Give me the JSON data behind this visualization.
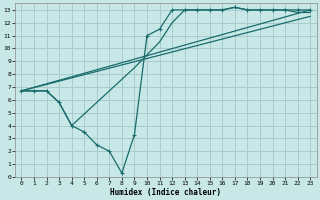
{
  "xlabel": "Humidex (Indice chaleur)",
  "bg_color": "#c8e8e8",
  "grid_color": "#a8cccc",
  "line_color": "#1a6b6b",
  "xlim": [
    -0.5,
    23.5
  ],
  "ylim": [
    0,
    13.5
  ],
  "xticks": [
    0,
    1,
    2,
    3,
    4,
    5,
    6,
    7,
    8,
    9,
    10,
    11,
    12,
    13,
    14,
    15,
    16,
    17,
    18,
    19,
    20,
    21,
    22,
    23
  ],
  "yticks": [
    0,
    1,
    2,
    3,
    4,
    5,
    6,
    7,
    8,
    9,
    10,
    11,
    12,
    13
  ],
  "series": [
    {
      "x": [
        0,
        1,
        2,
        3,
        4,
        5,
        6,
        7,
        8,
        9,
        10,
        11,
        12,
        13,
        14,
        15,
        16,
        17,
        18,
        19,
        20,
        21,
        22,
        23
      ],
      "y": [
        6.7,
        6.7,
        6.7,
        5.8,
        4.0,
        3.5,
        2.5,
        2.0,
        0.3,
        3.3,
        11.0,
        11.5,
        13.0,
        13.0,
        13.0,
        13.0,
        13.0,
        13.2,
        13.0,
        13.0,
        13.0,
        13.0,
        13.0,
        13.0
      ],
      "marker": "+"
    },
    {
      "x": [
        0,
        1,
        2,
        3,
        4,
        9,
        10,
        11,
        12,
        13,
        14,
        15,
        16,
        17,
        18,
        19,
        20,
        21,
        22,
        23
      ],
      "y": [
        6.7,
        6.7,
        6.7,
        5.8,
        4.0,
        8.5,
        9.5,
        10.5,
        12.0,
        13.0,
        13.0,
        13.0,
        13.0,
        13.2,
        13.0,
        13.0,
        13.0,
        13.0,
        12.8,
        12.8
      ],
      "marker": null
    },
    {
      "x": [
        0,
        23
      ],
      "y": [
        6.7,
        13.0
      ],
      "marker": null
    },
    {
      "x": [
        0,
        23
      ],
      "y": [
        6.7,
        12.5
      ],
      "marker": null
    }
  ]
}
